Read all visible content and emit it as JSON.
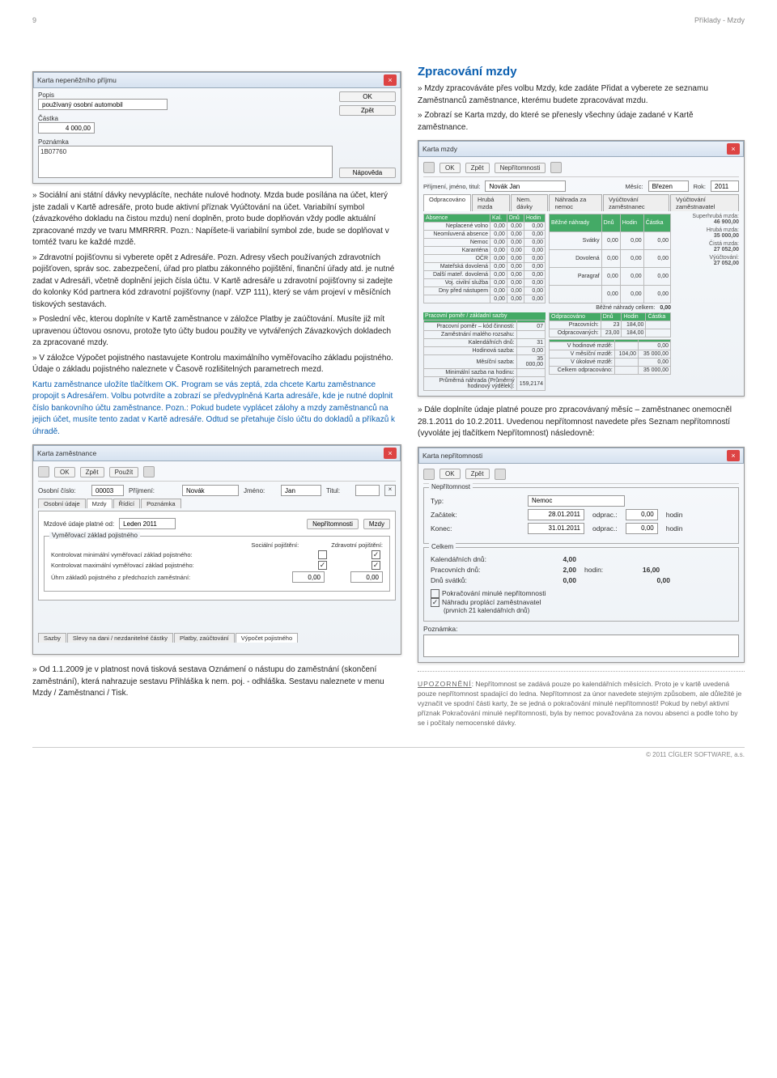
{
  "page_number": "9",
  "crumb": "Příklady - Mzdy",
  "title_right": "Zpracování mzdy",
  "right_intro_1": "» Mzdy zpracováváte přes volbu Mzdy, kde zadáte Přidat a vyberete ze seznamu Zaměstnanců zaměstnance, kterému budete zpracovávat mzdu.",
  "right_intro_2": "» Zobrazí se Karta mzdy, do které se přenesly všechny údaje zadané v Kartě zaměstnance.",
  "win1": {
    "title": "Karta nepeněžního příjmu",
    "popis_lbl": "Popis",
    "popis_val": "používaný osobní automobil",
    "castka_lbl": "Částka",
    "castka_val": "4 000,00",
    "pozn_lbl": "Poznámka",
    "pozn_val": "1B07760",
    "ok": "OK",
    "zpet": "Zpět",
    "nap": "Nápověda"
  },
  "left_body_1": "» Sociální ani státní dávky nevyplácíte, necháte nulové hodnoty. Mzda bude posílána na účet, který jste zadali v Kartě adresáře, proto bude aktivní příznak Vyúčtování na účet. Variabilní symbol (závazkového dokladu na čistou mzdu) není doplněn, proto bude doplňován vždy podle aktuální zpracované mzdy ve tvaru MMRRRR. Pozn.: Napíšete-li variabilní symbol zde, bude se doplňovat v tomtéž tvaru ke každé mzdě.",
  "left_body_2": "» Zdravotní pojišťovnu si vyberete opět z Adresáře. Pozn. Adresy všech používaných zdravotních pojišťoven, správ soc. zabezpečení, úřad pro platbu zákonného pojištění, finanční úřady atd. je nutné zadat v Adresáři, včetně doplnění jejich čísla účtu. V Kartě adresáře u zdravotní pojišťovny si zadejte do kolonky Kód partnera kód zdravotní pojišťovny (např. VZP 111), který se vám projeví v měsíčních tiskových sestavách.",
  "left_body_3": "» Poslední věc, kterou doplníte v Kartě zaměstnance v záložce Platby je zaúčtování. Musíte již mít upravenou účtovou osnovu, protože tyto účty budou použity ve vytvářených Závazkových dokladech za zpracované mzdy.",
  "left_body_4": "» V záložce Výpočet pojistného nastavujete Kontrolu maximálního vyměřovacího základu pojistného. Údaje o základu pojistného naleznete v Časově rozlišitelných parametrech mezd.",
  "left_body_5": "Kartu zaměstnance uložíte tlačítkem OK. Program se vás zeptá, zda chcete Kartu zaměstnance propojit s Adresářem. Volbu potvrdíte a zobrazí se předvyplněná Karta adresáře, kde je nutné doplnit číslo bankovního účtu zaměstnance. Pozn.: Pokud budete vyplácet zálohy a mzdy zaměstnanců na jejich účet, musíte tento zadat v Kartě adresáře. Odtud se přetahuje číslo účtu do dokladů a příkazů k úhradě.",
  "win2": {
    "title": "Karta zaměstnance",
    "tb": [
      "OK",
      "Zpět",
      "Použít"
    ],
    "oscislo_l": "Osobní číslo:",
    "oscislo": "00003",
    "prij_l": "Příjmení:",
    "prij": "Novák",
    "jm_l": "Jméno:",
    "jm": "Jan",
    "tit_l": "Titul:",
    "tit": "",
    "tabs": [
      "Osobní údaje",
      "Mzdy",
      "Řídící",
      "Poznámka"
    ],
    "mzd_l": "Mzdové údaje platné od:",
    "mzd_v": "Leden 2011",
    "nep": "Nepřítomnosti",
    "mzdy": "Mzdy",
    "gtitle": "Vyměřovací základ pojistného",
    "sp": "Sociální pojištění:",
    "zp": "Zdravotní pojištění:",
    "row1": "Kontrolovat minimální vyměřovací základ pojistného:",
    "row2": "Kontrolovat maximální vyměřovací základ pojistného:",
    "row3": "Úhrn základů pojistného z předchozích zaměstnání:",
    "v1": "0,00",
    "v2": "0,00",
    "btabs": [
      "Sazby",
      "Slevy na dani / nezdanitelné částky",
      "Platby, zaúčtování",
      "Výpočet pojistného"
    ]
  },
  "win3": {
    "title": "Karta mzdy",
    "tb": [
      "OK",
      "Zpět",
      "Nepřítomnosti"
    ],
    "name_l": "Příjmení, jméno, titul:",
    "name": "Novák Jan",
    "mes_l": "Měsíc:",
    "mes": "Březen",
    "rok_l": "Rok:",
    "rok": "2011",
    "tabs": [
      "Odpracováno",
      "Hrubá mzda",
      "Nem. dávky",
      "Náhrada za nemoc",
      "Vyúčtování zaměstnanec",
      "Vyúčtování zaměstnavatel"
    ],
    "abs_hdr": [
      "Absence",
      "Kal.",
      "Dnů",
      "Hodin"
    ],
    "abs_rows": [
      [
        "Neplacené volno",
        "0,00",
        "0,00",
        "0,00"
      ],
      [
        "Neomluvená absence",
        "0,00",
        "0,00",
        "0,00"
      ],
      [
        "Nemoc",
        "0,00",
        "0,00",
        "0,00"
      ],
      [
        "Karanténa",
        "0,00",
        "0,00",
        "0,00"
      ],
      [
        "OČR",
        "0,00",
        "0,00",
        "0,00"
      ],
      [
        "Mateřská dovolená",
        "0,00",
        "0,00",
        "0,00"
      ],
      [
        "Další mateř. dovolená",
        "0,00",
        "0,00",
        "0,00"
      ],
      [
        "Voj. civilní služba",
        "0,00",
        "0,00",
        "0,00"
      ],
      [
        "Dny před nástupem",
        "0,00",
        "0,00",
        "0,00"
      ],
      [
        "",
        "0,00",
        "0,00",
        "0,00"
      ]
    ],
    "bnahr_hdr": [
      "Běžné náhrady",
      "Dnů",
      "Hodin",
      "Částka"
    ],
    "bnahr_rows": [
      [
        "Svátky",
        "0,00",
        "0,00",
        "0,00"
      ],
      [
        "Dovolená",
        "0,00",
        "0,00",
        "0,00"
      ],
      [
        "Paragraf",
        "0,00",
        "0,00",
        "0,00"
      ],
      [
        "",
        "0,00",
        "0,00",
        "0,00"
      ]
    ],
    "bn_cel": "Běžné náhrady celkem:",
    "bn_cel_v": "0,00",
    "odp_hdr": [
      "Odpracováno",
      "Dnů",
      "Hodin",
      "Částka"
    ],
    "odp_rows": [
      [
        "Pracovních:",
        "23",
        "184,00",
        ""
      ],
      [
        "Odpracovaných:",
        "23,00",
        "184,00",
        ""
      ]
    ],
    "pom_t": "Pracovní poměr / základní sazby",
    "pom_rows": [
      [
        "Pracovní poměr – kód činnosti:",
        "07",
        ""
      ],
      [
        "Zaměstnání malého rozsahu:",
        "",
        ""
      ],
      [
        "Kalendářních dnů:",
        "31",
        ""
      ],
      [
        "Hodinová sazba:",
        "0,00",
        ""
      ],
      [
        "Měsíční sazba:",
        "35 000,00",
        ""
      ],
      [
        "Minimální sazba na hodinu:",
        "",
        ""
      ],
      [
        "Průměrná náhrada (Průměrný hodinový výdělek):",
        "159,2174",
        ""
      ]
    ],
    "pom_right": [
      [
        "V hodinové mzdě:",
        "",
        "0,00"
      ],
      [
        "V měsíční mzdě:",
        "104,00",
        "35 000,00"
      ],
      [
        "V úkolové mzdě:",
        "",
        "0,00"
      ],
      [
        "Celkem odpracováno:",
        "",
        "35 000,00"
      ]
    ],
    "side": [
      [
        "Superhrubá mzda:",
        "46 900,00"
      ],
      [
        "Hrubá mzda:",
        "35 000,00"
      ],
      [
        "Čistá mzda:",
        "27 052,00"
      ],
      [
        "Výúčtování:",
        "27 052,00"
      ]
    ]
  },
  "right_mid": "» Dále doplníte údaje platné pouze pro zpracovávaný měsíc – zaměstnanec onemocněl 28.1.2011 do 10.2.2011. Uvedenou nepřítomnost navedete přes Seznam nepřítomností (vyvoláte jej tlačítkem Nepřítomnost) následovně:",
  "win4": {
    "title": "Karta nepřítomnosti",
    "tb": [
      "OK",
      "Zpět"
    ],
    "g1": "Nepřítomnost",
    "typ_l": "Typ:",
    "typ": "Nemoc",
    "zac_l": "Začátek:",
    "zac": "28.01.2011",
    "odp_l": "odprac.:",
    "zac_o": "0,00",
    "hod": "hodin",
    "kon_l": "Konec:",
    "kon": "31.01.2011",
    "kon_o": "0,00",
    "g2": "Celkem",
    "kd_l": "Kalendářních dnů:",
    "kd": "4,00",
    "pd_l": "Pracovních dnů:",
    "pd": "2,00",
    "hod_l": "hodin:",
    "pd_h": "16,00",
    "ds_l": "Dnů svátků:",
    "ds": "0,00",
    "ds_h": "0,00",
    "c1": "Pokračování minulé nepřítomnosti",
    "c2": "Náhradu proplácí zaměstnavatel",
    "c2s": "(prvních 21 kalendářních dnů)",
    "pozn": "Poznámka:"
  },
  "bottom_left": "» Od 1.1.2009 je v platnost nová tisková sestava Oznámení o nástupu do zaměstnání (skončení zaměstnání), která nahrazuje sestavu Přihláška k nem. poj. - odhláška. Sestavu naleznete v menu Mzdy / Zaměstnanci / Tisk.",
  "upoz_l": "UPOZORNĚNÍ",
  "upoz": ": Nepřítomnost se zadává pouze po kalendářních měsících. Proto je v kartě uvedená pouze nepřítomnost spadající do ledna. Nepřítomnost za únor navedete stejným způsobem, ale důležité je vyznačit ve spodní části karty, že se jedná o pokračování minulé nepřítomnosti! Pokud by nebyl aktivní příznak Pokračování minulé nepřítomnosti, byla by nemoc považována za novou absenci a podle toho by se i počítaly nemocenské dávky.",
  "footer": "© 2011 CÍGLER SOFTWARE, a.s."
}
